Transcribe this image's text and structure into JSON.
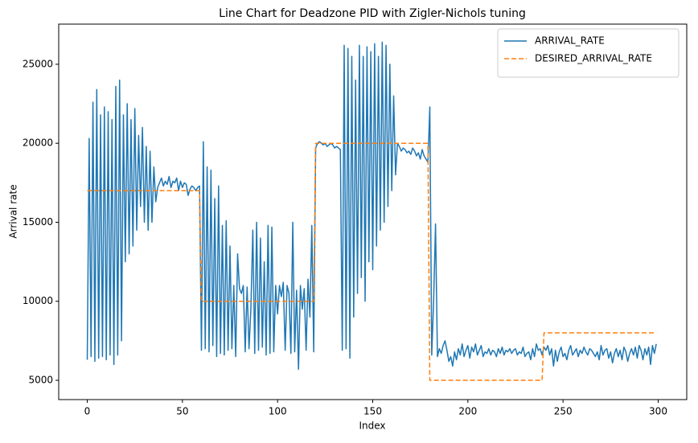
{
  "chart_data": {
    "type": "line",
    "title": "Line Chart for Deadzone PID with Zigler-Nichols tuning",
    "x_label": "Index",
    "y_label": "Arrival rate",
    "xlim": [
      -15,
      315
    ],
    "ylim": [
      3780,
      27540
    ],
    "xticks": [
      0,
      50,
      100,
      150,
      200,
      250,
      300
    ],
    "yticks": [
      5000,
      10000,
      15000,
      20000,
      25000
    ],
    "legend": "upper right",
    "grid": false,
    "x": [
      0,
      1,
      2,
      3,
      4,
      5,
      6,
      7,
      8,
      9,
      10,
      11,
      12,
      13,
      14,
      15,
      16,
      17,
      18,
      19,
      20,
      21,
      22,
      23,
      24,
      25,
      26,
      27,
      28,
      29,
      30,
      31,
      32,
      33,
      34,
      35,
      36,
      37,
      38,
      39,
      40,
      41,
      42,
      43,
      44,
      45,
      46,
      47,
      48,
      49,
      50,
      51,
      52,
      53,
      54,
      55,
      56,
      57,
      58,
      59,
      60,
      61,
      62,
      63,
      64,
      65,
      66,
      67,
      68,
      69,
      70,
      71,
      72,
      73,
      74,
      75,
      76,
      77,
      78,
      79,
      80,
      81,
      82,
      83,
      84,
      85,
      86,
      87,
      88,
      89,
      90,
      91,
      92,
      93,
      94,
      95,
      96,
      97,
      98,
      99,
      100,
      101,
      102,
      103,
      104,
      105,
      106,
      107,
      108,
      109,
      110,
      111,
      112,
      113,
      114,
      115,
      116,
      117,
      118,
      119,
      120,
      121,
      122,
      123,
      124,
      125,
      126,
      127,
      128,
      129,
      130,
      131,
      132,
      133,
      134,
      135,
      136,
      137,
      138,
      139,
      140,
      141,
      142,
      143,
      144,
      145,
      146,
      147,
      148,
      149,
      150,
      151,
      152,
      153,
      154,
      155,
      156,
      157,
      158,
      159,
      160,
      161,
      162,
      163,
      164,
      165,
      166,
      167,
      168,
      169,
      170,
      171,
      172,
      173,
      174,
      175,
      176,
      177,
      178,
      179,
      180,
      181,
      182,
      183,
      184,
      185,
      186,
      187,
      188,
      189,
      190,
      191,
      192,
      193,
      194,
      195,
      196,
      197,
      198,
      199,
      200,
      201,
      202,
      203,
      204,
      205,
      206,
      207,
      208,
      209,
      210,
      211,
      212,
      213,
      214,
      215,
      216,
      217,
      218,
      219,
      220,
      221,
      222,
      223,
      224,
      225,
      226,
      227,
      228,
      229,
      230,
      231,
      232,
      233,
      234,
      235,
      236,
      237,
      238,
      239,
      240,
      241,
      242,
      243,
      244,
      245,
      246,
      247,
      248,
      249,
      250,
      251,
      252,
      253,
      254,
      255,
      256,
      257,
      258,
      259,
      260,
      261,
      262,
      263,
      264,
      265,
      266,
      267,
      268,
      269,
      270,
      271,
      272,
      273,
      274,
      275,
      276,
      277,
      278,
      279,
      280,
      281,
      282,
      283,
      284,
      285,
      286,
      287,
      288,
      289,
      290,
      291,
      292,
      293,
      294,
      295,
      296,
      297,
      298,
      299
    ],
    "series": [
      {
        "name": "ARRIVAL_RATE",
        "color": "#1f77b4",
        "linestyle": "solid",
        "values": [
          6300,
          20300,
          6500,
          22600,
          6200,
          23400,
          6400,
          21800,
          6500,
          22300,
          6300,
          22000,
          6600,
          21500,
          6000,
          23600,
          6600,
          24000,
          7500,
          21800,
          12500,
          22500,
          13000,
          21500,
          13500,
          22200,
          14500,
          20500,
          16000,
          21000,
          15000,
          19800,
          14500,
          19500,
          15000,
          18500,
          16300,
          17200,
          17500,
          17800,
          17300,
          17600,
          17400,
          17900,
          17200,
          17600,
          17500,
          17800,
          17000,
          17600,
          17200,
          17500,
          17400,
          16700,
          17100,
          17300,
          17200,
          17000,
          17200,
          17300,
          6900,
          20100,
          7000,
          18500,
          6800,
          18300,
          7200,
          16500,
          6500,
          17300,
          6700,
          14800,
          6600,
          15100,
          6900,
          13500,
          7000,
          11000,
          6500,
          13000,
          10800,
          10500,
          11000,
          6800,
          10900,
          7000,
          9600,
          14500,
          6700,
          15000,
          6900,
          14000,
          7100,
          12500,
          6600,
          14800,
          6700,
          14700,
          6800,
          11000,
          9200,
          11000,
          10300,
          11200,
          6900,
          11000,
          10500,
          6700,
          15000,
          6800,
          10700,
          5700,
          11000,
          9500,
          10800,
          6900,
          11400,
          9000,
          14800,
          6800,
          19700,
          20000,
          20100,
          20000,
          19900,
          20000,
          19800,
          19900,
          20000,
          19900,
          19700,
          19800,
          19700,
          19600,
          6900,
          26200,
          7000,
          26000,
          6400,
          25500,
          9000,
          24000,
          10500,
          26200,
          11500,
          25500,
          10000,
          26100,
          12500,
          25800,
          12000,
          26300,
          13500,
          25500,
          14500,
          26400,
          15000,
          26200,
          16000,
          25000,
          17000,
          23000,
          18000,
          20000,
          19800,
          19500,
          19700,
          19600,
          19400,
          19500,
          19300,
          19700,
          19500,
          19200,
          19400,
          19000,
          19600,
          19200,
          19000,
          18800,
          22300,
          6600,
          10000,
          14900,
          6500,
          7000,
          6700,
          7200,
          7500,
          6900,
          6200,
          6500,
          5900,
          6800,
          6300,
          7000,
          6600,
          7300,
          6500,
          6900,
          7200,
          6400,
          7100,
          6800,
          7300,
          6600,
          6900,
          7200,
          6500,
          6800,
          6700,
          7000,
          6600,
          6900,
          6800,
          6500,
          7000,
          6700,
          7100,
          6600,
          6900,
          6800,
          7000,
          6700,
          6900,
          7000,
          6600,
          6800,
          6700,
          7100,
          6500,
          6700,
          6800,
          6300,
          7000,
          6500,
          7300,
          6900,
          7000,
          6600,
          7100,
          6900,
          7200,
          6600,
          7000,
          5900,
          6900,
          6200,
          6800,
          7100,
          6500,
          6700,
          6300,
          6900,
          7200,
          6600,
          6800,
          7000,
          6500,
          6900,
          6700,
          7100,
          6800,
          6600,
          7000,
          6900,
          6700,
          6500,
          6800,
          6300,
          7200,
          6600,
          6900,
          7000,
          6400,
          6800,
          6100,
          6700,
          7000,
          6500,
          6900,
          6300,
          7100,
          6800,
          6200,
          6700,
          7000,
          6600,
          7100,
          6400,
          7200,
          6900,
          6300,
          7000,
          6600,
          7100,
          6000,
          7200,
          6700,
          7300
        ]
      },
      {
        "name": "DESIRED_ARRIVAL_RATE",
        "color": "#ff7f0e",
        "linestyle": "dashed",
        "values": [
          17000,
          17000,
          17000,
          17000,
          17000,
          17000,
          17000,
          17000,
          17000,
          17000,
          17000,
          17000,
          17000,
          17000,
          17000,
          17000,
          17000,
          17000,
          17000,
          17000,
          17000,
          17000,
          17000,
          17000,
          17000,
          17000,
          17000,
          17000,
          17000,
          17000,
          17000,
          17000,
          17000,
          17000,
          17000,
          17000,
          17000,
          17000,
          17000,
          17000,
          17000,
          17000,
          17000,
          17000,
          17000,
          17000,
          17000,
          17000,
          17000,
          17000,
          17000,
          17000,
          17000,
          17000,
          17000,
          17000,
          17000,
          17000,
          17000,
          17000,
          10000,
          10000,
          10000,
          10000,
          10000,
          10000,
          10000,
          10000,
          10000,
          10000,
          10000,
          10000,
          10000,
          10000,
          10000,
          10000,
          10000,
          10000,
          10000,
          10000,
          10000,
          10000,
          10000,
          10000,
          10000,
          10000,
          10000,
          10000,
          10000,
          10000,
          10000,
          10000,
          10000,
          10000,
          10000,
          10000,
          10000,
          10000,
          10000,
          10000,
          10000,
          10000,
          10000,
          10000,
          10000,
          10000,
          10000,
          10000,
          10000,
          10000,
          10000,
          10000,
          10000,
          10000,
          10000,
          10000,
          10000,
          10000,
          10000,
          10000,
          20000,
          20000,
          20000,
          20000,
          20000,
          20000,
          20000,
          20000,
          20000,
          20000,
          20000,
          20000,
          20000,
          20000,
          20000,
          20000,
          20000,
          20000,
          20000,
          20000,
          20000,
          20000,
          20000,
          20000,
          20000,
          20000,
          20000,
          20000,
          20000,
          20000,
          20000,
          20000,
          20000,
          20000,
          20000,
          20000,
          20000,
          20000,
          20000,
          20000,
          20000,
          20000,
          20000,
          20000,
          20000,
          20000,
          20000,
          20000,
          20000,
          20000,
          20000,
          20000,
          20000,
          20000,
          20000,
          20000,
          20000,
          20000,
          20000,
          20000,
          5000,
          5000,
          5000,
          5000,
          5000,
          5000,
          5000,
          5000,
          5000,
          5000,
          5000,
          5000,
          5000,
          5000,
          5000,
          5000,
          5000,
          5000,
          5000,
          5000,
          5000,
          5000,
          5000,
          5000,
          5000,
          5000,
          5000,
          5000,
          5000,
          5000,
          5000,
          5000,
          5000,
          5000,
          5000,
          5000,
          5000,
          5000,
          5000,
          5000,
          5000,
          5000,
          5000,
          5000,
          5000,
          5000,
          5000,
          5000,
          5000,
          5000,
          5000,
          5000,
          5000,
          5000,
          5000,
          5000,
          5000,
          5000,
          5000,
          5000,
          8000,
          8000,
          8000,
          8000,
          8000,
          8000,
          8000,
          8000,
          8000,
          8000,
          8000,
          8000,
          8000,
          8000,
          8000,
          8000,
          8000,
          8000,
          8000,
          8000,
          8000,
          8000,
          8000,
          8000,
          8000,
          8000,
          8000,
          8000,
          8000,
          8000,
          8000,
          8000,
          8000,
          8000,
          8000,
          8000,
          8000,
          8000,
          8000,
          8000,
          8000,
          8000,
          8000,
          8000,
          8000,
          8000,
          8000,
          8000,
          8000,
          8000,
          8000,
          8000,
          8000,
          8000,
          8000,
          8000,
          8000,
          8000,
          8000,
          8000
        ]
      }
    ]
  }
}
